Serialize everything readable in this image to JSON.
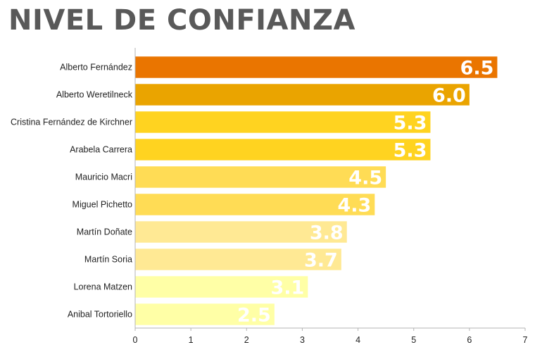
{
  "header": {
    "title": "NIVEL DE CONFIANZA"
  },
  "chart_data": {
    "type": "bar",
    "orientation": "horizontal",
    "title": "NIVEL DE CONFIANZA",
    "xlabel": "",
    "ylabel": "",
    "xlim": [
      0,
      7
    ],
    "ticks": [
      "0",
      "1",
      "2",
      "3",
      "4",
      "5",
      "6",
      "7"
    ],
    "grid": false,
    "categories": [
      "Alberto Fernández",
      "Alberto Weretilneck",
      "Cristina Fernández de Kirchner",
      "Arabela Carrera",
      "Mauricio Macri",
      "Miguel Pichetto",
      "Martín Doñate",
      "Martín Soria",
      "Lorena Matzen",
      "Anibal Tortoriello"
    ],
    "values": [
      6.5,
      6.0,
      5.3,
      5.3,
      4.5,
      4.3,
      3.8,
      3.7,
      3.1,
      2.5
    ],
    "value_labels": [
      "6.5",
      "6.0",
      "5.3",
      "5.3",
      "4.5",
      "4.3",
      "3.8",
      "3.7",
      "3.1",
      "2.5"
    ],
    "colors": [
      "#EA7500",
      "#EAA400",
      "#FFD320",
      "#FFD320",
      "#FFDC55",
      "#FFDC55",
      "#FFE994",
      "#FFE994",
      "#FFFFA6",
      "#FFFFA6"
    ]
  }
}
